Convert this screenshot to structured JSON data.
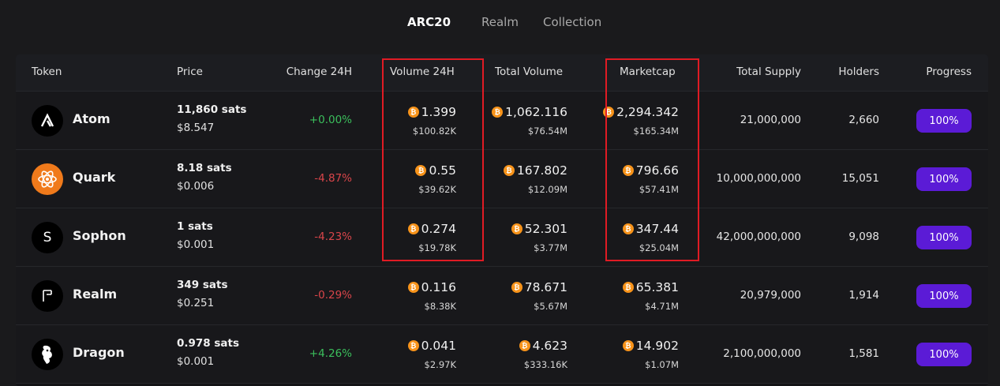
{
  "tabs": [
    "ARC20",
    "Realm",
    "Collection"
  ],
  "columns": {
    "token": "Token",
    "price": "Price",
    "change": "Change 24H",
    "volume": "Volume 24H",
    "total_volume": "Total Volume",
    "marketcap": "Marketcap",
    "total_supply": "Total Supply",
    "holders": "Holders",
    "progress": "Progress"
  },
  "rows": [
    {
      "name": "Atom",
      "avatar": "atom-logo",
      "price_sats": "11,860 sats",
      "price_usd": "$8.547",
      "change": "+0.00%",
      "change_dir": "up",
      "volume": "1.399",
      "volume_usd": "$100.82K",
      "total_volume": "1,062.116",
      "total_volume_usd": "$76.54M",
      "marketcap": "2,294.342",
      "marketcap_usd": "$165.34M",
      "supply": "21,000,000",
      "holders": "2,660",
      "progress": "100%"
    },
    {
      "name": "Quark",
      "avatar": "quark-logo",
      "price_sats": "8.18 sats",
      "price_usd": "$0.006",
      "change": "-4.87%",
      "change_dir": "down",
      "volume": "0.55",
      "volume_usd": "$39.62K",
      "total_volume": "167.802",
      "total_volume_usd": "$12.09M",
      "marketcap": "796.66",
      "marketcap_usd": "$57.41M",
      "supply": "10,000,000,000",
      "holders": "15,051",
      "progress": "100%"
    },
    {
      "name": "Sophon",
      "avatar": "sophon-logo",
      "price_sats": "1 sats",
      "price_usd": "$0.001",
      "change": "-4.23%",
      "change_dir": "down",
      "volume": "0.274",
      "volume_usd": "$19.78K",
      "total_volume": "52.301",
      "total_volume_usd": "$3.77M",
      "marketcap": "347.44",
      "marketcap_usd": "$25.04M",
      "supply": "42,000,000,000",
      "holders": "9,098",
      "progress": "100%"
    },
    {
      "name": "Realm",
      "avatar": "realm-logo",
      "price_sats": "349 sats",
      "price_usd": "$0.251",
      "change": "-0.29%",
      "change_dir": "down",
      "volume": "0.116",
      "volume_usd": "$8.38K",
      "total_volume": "78.671",
      "total_volume_usd": "$5.67M",
      "marketcap": "65.381",
      "marketcap_usd": "$4.71M",
      "supply": "20,979,000",
      "holders": "1,914",
      "progress": "100%"
    },
    {
      "name": "Dragon",
      "avatar": "dragon-logo",
      "price_sats": "0.978 sats",
      "price_usd": "$0.001",
      "change": "+4.26%",
      "change_dir": "up",
      "volume": "0.041",
      "volume_usd": "$2.97K",
      "total_volume": "4.623",
      "total_volume_usd": "$333.16K",
      "marketcap": "14.902",
      "marketcap_usd": "$1.07M",
      "supply": "2,100,000,000",
      "holders": "1,581",
      "progress": "100%"
    }
  ],
  "colors": {
    "accent_purple": "#5b1bd6",
    "up": "#3bbf5c",
    "down": "#d9454a",
    "btc": "#f7931a",
    "highlight": "#e01b24"
  }
}
